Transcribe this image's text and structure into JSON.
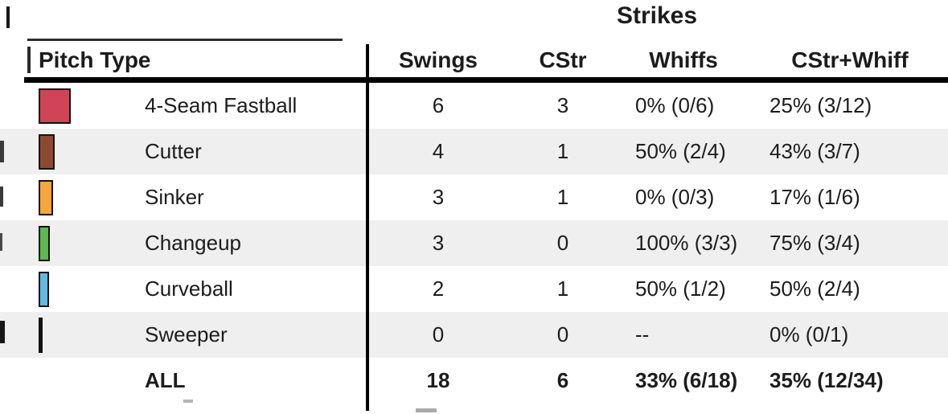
{
  "chart_data": {
    "type": "table",
    "title": "Strikes",
    "columns": [
      "Pitch Type",
      "Swings",
      "CStr",
      "Whiffs",
      "CStr+Whiff"
    ],
    "rows": [
      {
        "pitch": "4-Seam Fastball",
        "color": "#cf4457",
        "swatch_width": 40,
        "swings": 6,
        "cstr": 3,
        "whiffs": "0% (0/6)",
        "cstr_whiff": "25% (3/12)"
      },
      {
        "pitch": "Cutter",
        "color": "#8c4a32",
        "swatch_width": 20,
        "swings": 4,
        "cstr": 1,
        "whiffs": "50% (2/4)",
        "cstr_whiff": "43% (3/7)"
      },
      {
        "pitch": "Sinker",
        "color": "#f7a63e",
        "swatch_width": 18,
        "swings": 3,
        "cstr": 1,
        "whiffs": "0% (0/3)",
        "cstr_whiff": "17% (1/6)"
      },
      {
        "pitch": "Changeup",
        "color": "#5cb84f",
        "swatch_width": 14,
        "swings": 3,
        "cstr": 0,
        "whiffs": "100% (3/3)",
        "cstr_whiff": "75% (3/4)"
      },
      {
        "pitch": "Curveball",
        "color": "#63b8e3",
        "swatch_width": 13,
        "swings": 2,
        "cstr": 1,
        "whiffs": "50% (1/2)",
        "cstr_whiff": "50% (2/4)"
      },
      {
        "pitch": "Sweeper",
        "color": "#141414",
        "swatch_width": 5,
        "swings": 0,
        "cstr": 0,
        "whiffs": "--",
        "cstr_whiff": "0% (0/1)"
      }
    ],
    "total": {
      "pitch": "ALL",
      "swings": 18,
      "cstr": 6,
      "whiffs": "33% (6/18)",
      "cstr_whiff": "35% (12/34)"
    }
  }
}
